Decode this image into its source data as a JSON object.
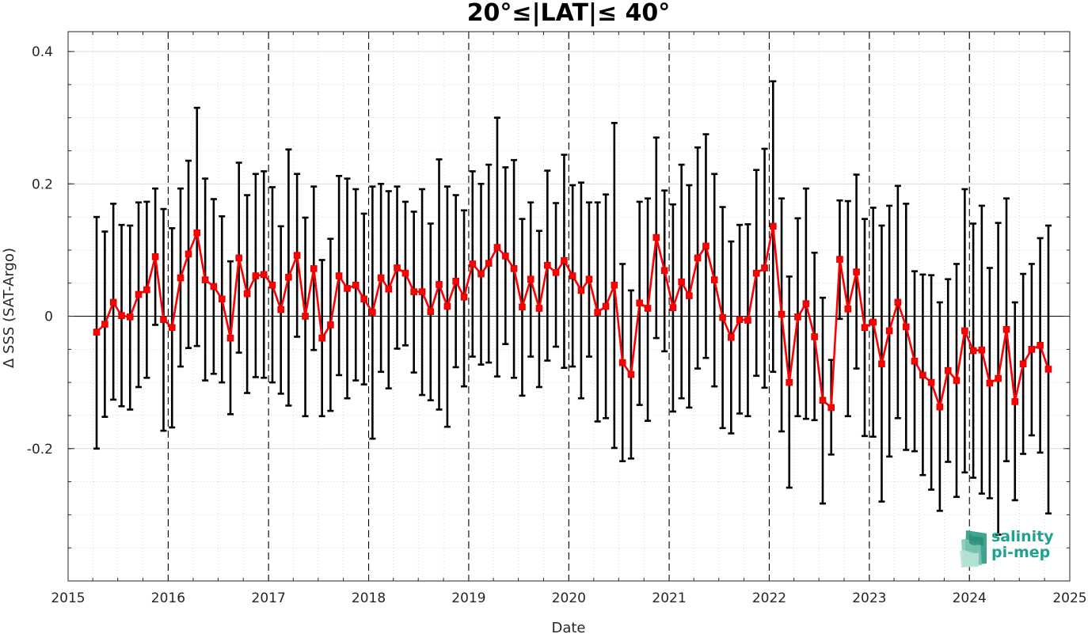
{
  "chart_data": {
    "type": "line",
    "title": "20°≤|LAT|≤ 40°",
    "xlabel": "Date",
    "ylabel": "Δ SSS (SAT-Argo)",
    "xlim": [
      "2015-01-01",
      "2025-01-01"
    ],
    "ylim": [
      -0.4,
      0.43
    ],
    "x_ticks": [
      "2015",
      "2016",
      "2017",
      "2018",
      "2019",
      "2020",
      "2021",
      "2022",
      "2023",
      "2024",
      "2025"
    ],
    "y_ticks": [
      -0.2,
      0,
      0.2,
      0.4
    ],
    "y_tick_labels": [
      "-0.2",
      "0",
      "0.2",
      "0.4"
    ],
    "grid": "on",
    "year_lines": "dashed",
    "series": [
      {
        "color": "#ff0000",
        "marker": "square",
        "errorbar_color": "#000000",
        "points": [
          {
            "x": "2015-04-15",
            "y": -0.024,
            "lo": -0.2,
            "hi": 0.15
          },
          {
            "x": "2015-05-15",
            "y": -0.012,
            "lo": -0.152,
            "hi": 0.128
          },
          {
            "x": "2015-06-15",
            "y": 0.021,
            "lo": -0.126,
            "hi": 0.17
          },
          {
            "x": "2015-07-15",
            "y": 0.001,
            "lo": -0.136,
            "hi": 0.138
          },
          {
            "x": "2015-08-15",
            "y": -0.001,
            "lo": -0.141,
            "hi": 0.137
          },
          {
            "x": "2015-09-15",
            "y": 0.033,
            "lo": -0.107,
            "hi": 0.172
          },
          {
            "x": "2015-10-15",
            "y": 0.04,
            "lo": -0.093,
            "hi": 0.173
          },
          {
            "x": "2015-11-15",
            "y": 0.09,
            "lo": -0.013,
            "hi": 0.193
          },
          {
            "x": "2015-12-15",
            "y": -0.005,
            "lo": -0.173,
            "hi": 0.162
          },
          {
            "x": "2016-01-15",
            "y": -0.017,
            "lo": -0.168,
            "hi": 0.133
          },
          {
            "x": "2016-02-15",
            "y": 0.058,
            "lo": -0.076,
            "hi": 0.193
          },
          {
            "x": "2016-03-15",
            "y": 0.094,
            "lo": -0.048,
            "hi": 0.235
          },
          {
            "x": "2016-04-15",
            "y": 0.126,
            "lo": -0.045,
            "hi": 0.315
          },
          {
            "x": "2016-05-15",
            "y": 0.055,
            "lo": -0.097,
            "hi": 0.208
          },
          {
            "x": "2016-06-15",
            "y": 0.045,
            "lo": -0.087,
            "hi": 0.177
          },
          {
            "x": "2016-07-15",
            "y": 0.026,
            "lo": -0.1,
            "hi": 0.151
          },
          {
            "x": "2016-08-15",
            "y": -0.033,
            "lo": -0.148,
            "hi": 0.083
          },
          {
            "x": "2016-09-15",
            "y": 0.088,
            "lo": -0.055,
            "hi": 0.232
          },
          {
            "x": "2016-10-15",
            "y": 0.034,
            "lo": -0.116,
            "hi": 0.183
          },
          {
            "x": "2016-11-15",
            "y": 0.061,
            "lo": -0.092,
            "hi": 0.215
          },
          {
            "x": "2016-12-15",
            "y": 0.063,
            "lo": -0.093,
            "hi": 0.219
          },
          {
            "x": "2017-01-15",
            "y": 0.047,
            "lo": -0.1,
            "hi": 0.195
          },
          {
            "x": "2017-02-15",
            "y": 0.01,
            "lo": -0.117,
            "hi": 0.136
          },
          {
            "x": "2017-03-15",
            "y": 0.059,
            "lo": -0.135,
            "hi": 0.252
          },
          {
            "x": "2017-04-15",
            "y": 0.092,
            "lo": -0.031,
            "hi": 0.215
          },
          {
            "x": "2017-05-15",
            "y": 0.0,
            "lo": -0.151,
            "hi": 0.149
          },
          {
            "x": "2017-06-15",
            "y": 0.072,
            "lo": -0.051,
            "hi": 0.196
          },
          {
            "x": "2017-07-15",
            "y": -0.033,
            "lo": -0.151,
            "hi": 0.085
          },
          {
            "x": "2017-08-15",
            "y": -0.013,
            "lo": -0.143,
            "hi": 0.117
          },
          {
            "x": "2017-09-15",
            "y": 0.061,
            "lo": -0.089,
            "hi": 0.212
          },
          {
            "x": "2017-10-15",
            "y": 0.042,
            "lo": -0.124,
            "hi": 0.208
          },
          {
            "x": "2017-11-15",
            "y": 0.047,
            "lo": -0.097,
            "hi": 0.192
          },
          {
            "x": "2017-12-15",
            "y": 0.026,
            "lo": -0.103,
            "hi": 0.155
          },
          {
            "x": "2018-01-15",
            "y": 0.006,
            "lo": -0.185,
            "hi": 0.196
          },
          {
            "x": "2018-02-15",
            "y": 0.058,
            "lo": -0.084,
            "hi": 0.2
          },
          {
            "x": "2018-03-15",
            "y": 0.041,
            "lo": -0.109,
            "hi": 0.189
          },
          {
            "x": "2018-04-15",
            "y": 0.073,
            "lo": -0.049,
            "hi": 0.196
          },
          {
            "x": "2018-05-15",
            "y": 0.065,
            "lo": -0.044,
            "hi": 0.173
          },
          {
            "x": "2018-06-15",
            "y": 0.037,
            "lo": -0.085,
            "hi": 0.158
          },
          {
            "x": "2018-07-15",
            "y": 0.037,
            "lo": -0.119,
            "hi": 0.192
          },
          {
            "x": "2018-08-15",
            "y": 0.007,
            "lo": -0.127,
            "hi": 0.14
          },
          {
            "x": "2018-09-15",
            "y": 0.048,
            "lo": -0.141,
            "hi": 0.237
          },
          {
            "x": "2018-10-15",
            "y": 0.015,
            "lo": -0.167,
            "hi": 0.196
          },
          {
            "x": "2018-11-15",
            "y": 0.053,
            "lo": -0.077,
            "hi": 0.183
          },
          {
            "x": "2018-12-15",
            "y": 0.029,
            "lo": -0.106,
            "hi": 0.16
          },
          {
            "x": "2019-01-15",
            "y": 0.079,
            "lo": -0.061,
            "hi": 0.219
          },
          {
            "x": "2019-02-15",
            "y": 0.064,
            "lo": -0.073,
            "hi": 0.2
          },
          {
            "x": "2019-03-15",
            "y": 0.08,
            "lo": -0.07,
            "hi": 0.229
          },
          {
            "x": "2019-04-15",
            "y": 0.104,
            "lo": -0.091,
            "hi": 0.3
          },
          {
            "x": "2019-05-15",
            "y": 0.091,
            "lo": -0.042,
            "hi": 0.225
          },
          {
            "x": "2019-06-15",
            "y": 0.072,
            "lo": -0.093,
            "hi": 0.236
          },
          {
            "x": "2019-07-15",
            "y": 0.014,
            "lo": -0.12,
            "hi": 0.147
          },
          {
            "x": "2019-08-15",
            "y": 0.056,
            "lo": -0.061,
            "hi": 0.172
          },
          {
            "x": "2019-09-15",
            "y": 0.012,
            "lo": -0.107,
            "hi": 0.129
          },
          {
            "x": "2019-10-15",
            "y": 0.077,
            "lo": -0.067,
            "hi": 0.22
          },
          {
            "x": "2019-11-15",
            "y": 0.066,
            "lo": -0.046,
            "hi": 0.171
          },
          {
            "x": "2019-12-15",
            "y": 0.084,
            "lo": -0.078,
            "hi": 0.244
          },
          {
            "x": "2020-01-15",
            "y": 0.061,
            "lo": -0.076,
            "hi": 0.198
          },
          {
            "x": "2020-02-15",
            "y": 0.039,
            "lo": -0.124,
            "hi": 0.202
          },
          {
            "x": "2020-03-15",
            "y": 0.056,
            "lo": -0.061,
            "hi": 0.172
          },
          {
            "x": "2020-04-15",
            "y": 0.006,
            "lo": -0.159,
            "hi": 0.172
          },
          {
            "x": "2020-05-15",
            "y": 0.015,
            "lo": -0.154,
            "hi": 0.184
          },
          {
            "x": "2020-06-15",
            "y": 0.047,
            "lo": -0.199,
            "hi": 0.292
          },
          {
            "x": "2020-07-15",
            "y": -0.07,
            "lo": -0.219,
            "hi": 0.079
          },
          {
            "x": "2020-08-15",
            "y": -0.088,
            "lo": -0.215,
            "hi": 0.039
          },
          {
            "x": "2020-09-15",
            "y": 0.02,
            "lo": -0.134,
            "hi": 0.173
          },
          {
            "x": "2020-10-15",
            "y": 0.012,
            "lo": -0.158,
            "hi": 0.178
          },
          {
            "x": "2020-11-15",
            "y": 0.119,
            "lo": -0.033,
            "hi": 0.27
          },
          {
            "x": "2020-12-15",
            "y": 0.069,
            "lo": -0.053,
            "hi": 0.19
          },
          {
            "x": "2021-01-15",
            "y": 0.013,
            "lo": -0.144,
            "hi": 0.169
          },
          {
            "x": "2021-02-15",
            "y": 0.052,
            "lo": -0.124,
            "hi": 0.229
          },
          {
            "x": "2021-03-15",
            "y": 0.031,
            "lo": -0.138,
            "hi": 0.198
          },
          {
            "x": "2021-04-15",
            "y": 0.088,
            "lo": -0.079,
            "hi": 0.255
          },
          {
            "x": "2021-05-15",
            "y": 0.106,
            "lo": -0.063,
            "hi": 0.275
          },
          {
            "x": "2021-06-15",
            "y": 0.055,
            "lo": -0.106,
            "hi": 0.215
          },
          {
            "x": "2021-07-15",
            "y": -0.002,
            "lo": -0.169,
            "hi": 0.165
          },
          {
            "x": "2021-08-15",
            "y": -0.032,
            "lo": -0.177,
            "hi": 0.113
          },
          {
            "x": "2021-09-15",
            "y": -0.005,
            "lo": -0.147,
            "hi": 0.138
          },
          {
            "x": "2021-10-15",
            "y": -0.006,
            "lo": -0.151,
            "hi": 0.139
          },
          {
            "x": "2021-11-15",
            "y": 0.065,
            "lo": -0.09,
            "hi": 0.221
          },
          {
            "x": "2021-12-15",
            "y": 0.073,
            "lo": -0.108,
            "hi": 0.253
          },
          {
            "x": "2022-01-15",
            "y": 0.136,
            "lo": -0.084,
            "hi": 0.355
          },
          {
            "x": "2022-02-15",
            "y": 0.003,
            "lo": -0.174,
            "hi": 0.178
          },
          {
            "x": "2022-03-15",
            "y": -0.1,
            "lo": -0.259,
            "hi": 0.06
          },
          {
            "x": "2022-04-15",
            "y": -0.001,
            "lo": -0.151,
            "hi": 0.148
          },
          {
            "x": "2022-05-15",
            "y": 0.019,
            "lo": -0.155,
            "hi": 0.193
          },
          {
            "x": "2022-06-15",
            "y": -0.031,
            "lo": -0.157,
            "hi": 0.096
          },
          {
            "x": "2022-07-15",
            "y": -0.127,
            "lo": -0.283,
            "hi": 0.028
          },
          {
            "x": "2022-08-15",
            "y": -0.138,
            "lo": -0.209,
            "hi": -0.066
          },
          {
            "x": "2022-09-15",
            "y": 0.086,
            "lo": -0.004,
            "hi": 0.175
          },
          {
            "x": "2022-10-15",
            "y": 0.011,
            "lo": -0.151,
            "hi": 0.174
          },
          {
            "x": "2022-11-15",
            "y": 0.067,
            "lo": -0.079,
            "hi": 0.214
          },
          {
            "x": "2022-12-15",
            "y": -0.017,
            "lo": -0.181,
            "hi": 0.147
          },
          {
            "x": "2023-01-15",
            "y": -0.009,
            "lo": -0.182,
            "hi": 0.164
          },
          {
            "x": "2023-02-15",
            "y": -0.072,
            "lo": -0.28,
            "hi": 0.137
          },
          {
            "x": "2023-03-15",
            "y": -0.022,
            "lo": -0.212,
            "hi": 0.167
          },
          {
            "x": "2023-04-15",
            "y": 0.021,
            "lo": -0.154,
            "hi": 0.197
          },
          {
            "x": "2023-05-15",
            "y": -0.016,
            "lo": -0.202,
            "hi": 0.17
          },
          {
            "x": "2023-06-15",
            "y": -0.068,
            "lo": -0.204,
            "hi": 0.068
          },
          {
            "x": "2023-07-15",
            "y": -0.089,
            "lo": -0.24,
            "hi": 0.063
          },
          {
            "x": "2023-08-15",
            "y": -0.1,
            "lo": -0.262,
            "hi": 0.062
          },
          {
            "x": "2023-09-15",
            "y": -0.137,
            "lo": -0.294,
            "hi": 0.021
          },
          {
            "x": "2023-10-15",
            "y": -0.082,
            "lo": -0.22,
            "hi": 0.056
          },
          {
            "x": "2023-11-15",
            "y": -0.097,
            "lo": -0.273,
            "hi": 0.079
          },
          {
            "x": "2023-12-15",
            "y": -0.022,
            "lo": -0.236,
            "hi": 0.192
          },
          {
            "x": "2024-01-15",
            "y": -0.052,
            "lo": -0.244,
            "hi": 0.14
          },
          {
            "x": "2024-02-15",
            "y": -0.051,
            "lo": -0.268,
            "hi": 0.167
          },
          {
            "x": "2024-03-15",
            "y": -0.101,
            "lo": -0.275,
            "hi": 0.073
          },
          {
            "x": "2024-04-15",
            "y": -0.094,
            "lo": -0.33,
            "hi": 0.141
          },
          {
            "x": "2024-05-15",
            "y": -0.02,
            "lo": -0.219,
            "hi": 0.178
          },
          {
            "x": "2024-06-15",
            "y": -0.129,
            "lo": -0.278,
            "hi": 0.021
          },
          {
            "x": "2024-07-15",
            "y": -0.072,
            "lo": -0.208,
            "hi": 0.064
          },
          {
            "x": "2024-08-15",
            "y": -0.05,
            "lo": -0.18,
            "hi": 0.079
          },
          {
            "x": "2024-09-15",
            "y": -0.044,
            "lo": -0.206,
            "hi": 0.118
          },
          {
            "x": "2024-10-15",
            "y": -0.08,
            "lo": -0.298,
            "hi": 0.137
          }
        ]
      }
    ]
  },
  "logo": {
    "line1": "salinity",
    "line2": "pi-mep",
    "color": "#1fa38f"
  }
}
